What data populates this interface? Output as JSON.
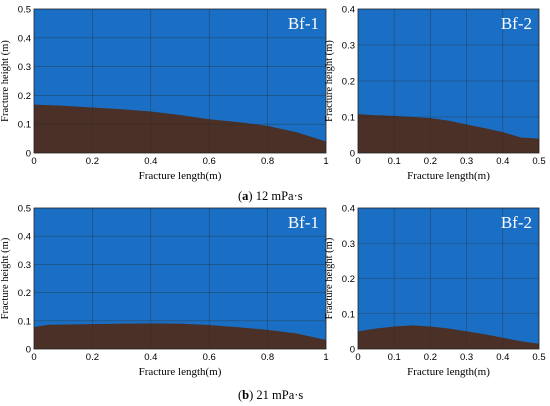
{
  "colors": {
    "fluid": "#1a6fc4",
    "proppant": "#4a3026"
  },
  "captions": [
    {
      "letter": "a",
      "text": "12 mPa·s"
    },
    {
      "letter": "b",
      "text": "21 mPa·s"
    }
  ],
  "chart_data": [
    {
      "type": "area",
      "title": "Bf-1",
      "xlabel": "Fracture length(m)",
      "ylabel": "Fracture height (m)",
      "xlim": [
        0,
        1
      ],
      "ylim": [
        0,
        0.5
      ],
      "xticks": [
        0,
        0.2,
        0.4,
        0.6,
        0.8,
        1
      ],
      "xtick_labels": [
        "0",
        "0.2",
        "0.4",
        "0.6",
        "0.8",
        "1"
      ],
      "yticks": [
        0,
        0.1,
        0.2,
        0.3,
        0.4,
        0.5
      ],
      "ytick_labels": [
        "0",
        "0.1",
        "0.2",
        "0.3",
        "0.4",
        "0.5"
      ],
      "grid": true,
      "x": [
        0,
        0.1,
        0.2,
        0.3,
        0.4,
        0.5,
        0.6,
        0.7,
        0.8,
        0.9,
        1.0
      ],
      "y": [
        0.168,
        0.164,
        0.158,
        0.152,
        0.144,
        0.132,
        0.117,
        0.107,
        0.094,
        0.072,
        0.04
      ]
    },
    {
      "type": "area",
      "title": "Bf-2",
      "xlabel": "Fracture length(m)",
      "ylabel": "Fracture height (m)",
      "xlim": [
        0,
        0.5
      ],
      "ylim": [
        0,
        0.4
      ],
      "xticks": [
        0,
        0.1,
        0.2,
        0.3,
        0.4,
        0.5
      ],
      "xtick_labels": [
        "0",
        "0.1",
        "0.2",
        "0.3",
        "0.4",
        "0.5"
      ],
      "yticks": [
        0,
        0.1,
        0.2,
        0.3,
        0.4
      ],
      "ytick_labels": [
        "0",
        "0.1",
        "0.2",
        "0.3",
        "0.4"
      ],
      "grid": true,
      "x": [
        0,
        0.05,
        0.1,
        0.15,
        0.2,
        0.25,
        0.3,
        0.35,
        0.4,
        0.45,
        0.5
      ],
      "y": [
        0.108,
        0.105,
        0.103,
        0.1,
        0.097,
        0.09,
        0.079,
        0.069,
        0.058,
        0.043,
        0.04
      ]
    },
    {
      "type": "area",
      "title": "Bf-1",
      "xlabel": "Fracture length(m)",
      "ylabel": "Fracture height (m)",
      "xlim": [
        0,
        1
      ],
      "ylim": [
        0,
        0.5
      ],
      "xticks": [
        0,
        0.2,
        0.4,
        0.6,
        0.8,
        1
      ],
      "xtick_labels": [
        "0",
        "0.2",
        "0.4",
        "0.6",
        "0.8",
        "1"
      ],
      "yticks": [
        0,
        0.1,
        0.2,
        0.3,
        0.4,
        0.5
      ],
      "ytick_labels": [
        "0",
        "0.1",
        "0.2",
        "0.3",
        "0.4",
        "0.5"
      ],
      "grid": true,
      "x": [
        0,
        0.05,
        0.2,
        0.3,
        0.4,
        0.5,
        0.6,
        0.7,
        0.8,
        0.9,
        1.0
      ],
      "y": [
        0.078,
        0.086,
        0.088,
        0.09,
        0.091,
        0.09,
        0.085,
        0.077,
        0.068,
        0.055,
        0.032
      ]
    },
    {
      "type": "area",
      "title": "Bf-2",
      "xlabel": "Fracture length(m)",
      "ylabel": "Fracture height (m)",
      "xlim": [
        0,
        0.5
      ],
      "ylim": [
        0,
        0.4
      ],
      "xticks": [
        0,
        0.1,
        0.2,
        0.3,
        0.4,
        0.5
      ],
      "xtick_labels": [
        "0",
        "0.1",
        "0.2",
        "0.3",
        "0.4",
        "0.5"
      ],
      "yticks": [
        0,
        0.1,
        0.2,
        0.3,
        0.4
      ],
      "ytick_labels": [
        "0",
        "0.1",
        "0.2",
        "0.3",
        "0.4"
      ],
      "grid": true,
      "x": [
        0,
        0.05,
        0.1,
        0.15,
        0.2,
        0.25,
        0.3,
        0.35,
        0.4,
        0.45,
        0.5
      ],
      "y": [
        0.05,
        0.058,
        0.064,
        0.067,
        0.064,
        0.058,
        0.05,
        0.042,
        0.032,
        0.022,
        0.015
      ]
    }
  ]
}
